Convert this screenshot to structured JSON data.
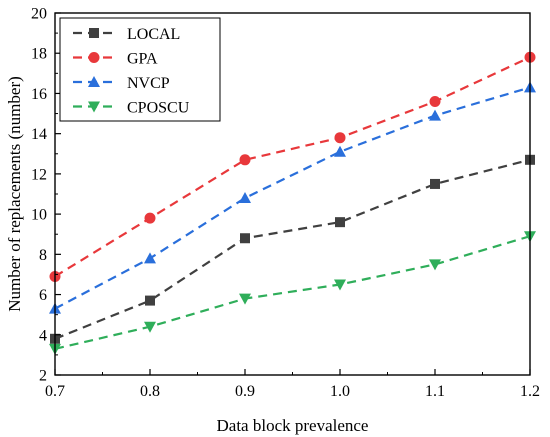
{
  "chart_data": {
    "type": "line",
    "title": "",
    "xlabel": "Data block prevalence",
    "ylabel": "Number of replacements (number)",
    "x": [
      0.7,
      0.8,
      0.9,
      1.0,
      1.1,
      1.2
    ],
    "x_tick_labels": [
      "0.7",
      "0.8",
      "0.9",
      "1.0",
      "1.1",
      "1.2"
    ],
    "xlim": [
      0.7,
      1.2
    ],
    "ylim": [
      2,
      20
    ],
    "y_ticks": [
      2,
      4,
      6,
      8,
      10,
      12,
      14,
      16,
      18,
      20
    ],
    "y_tick_labels": [
      "2",
      "4",
      "6",
      "8",
      "10",
      "12",
      "14",
      "16",
      "18",
      "20"
    ],
    "grid": false,
    "legend_position": "top-left",
    "series": [
      {
        "name": "LOCAL",
        "color": "#404040",
        "marker": "square",
        "values": [
          3.8,
          5.7,
          8.8,
          9.6,
          11.5,
          12.7
        ]
      },
      {
        "name": "GPA",
        "color": "#e8383b",
        "marker": "circle",
        "values": [
          6.9,
          9.8,
          12.7,
          13.8,
          15.6,
          17.8
        ]
      },
      {
        "name": "NVCP",
        "color": "#2a6fdb",
        "marker": "triangle-up",
        "values": [
          5.3,
          7.8,
          10.8,
          13.1,
          14.9,
          16.3
        ]
      },
      {
        "name": "CPOSCU",
        "color": "#2fae5a",
        "marker": "triangle-down",
        "values": [
          3.3,
          4.4,
          5.8,
          6.5,
          7.5,
          8.9
        ]
      }
    ]
  }
}
